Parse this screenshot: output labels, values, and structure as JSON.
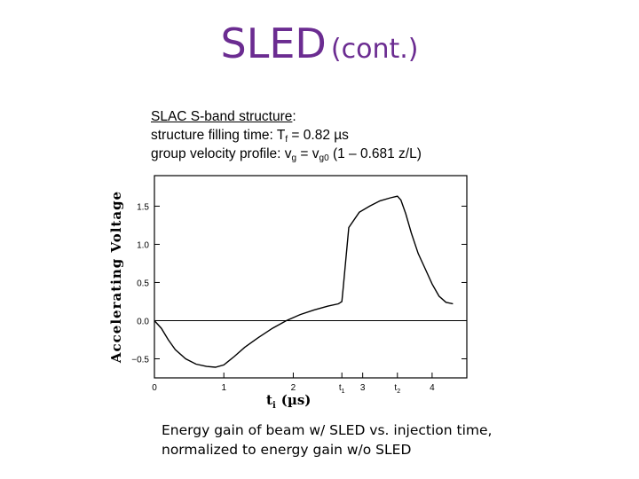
{
  "slide": {
    "title_main": "SLED",
    "title_sub": "(cont.)",
    "info": {
      "line1_link": "SLAC S-band structure",
      "line1_rest": ":",
      "line2_prefix": "structure filling time:   T",
      "line2_sub": "f",
      "line2_suffix": " = 0.82 µs",
      "line3_prefix": "group velocity profile: v",
      "line3_sub1": "g",
      "line3_mid": " = v",
      "line3_sub2": "g0",
      "line3_suffix": " (1 – 0.681 z/L)"
    },
    "caption_line1": "Energy gain of beam w/ SLED vs. injection time,",
    "caption_line2": "normalized to energy gain w/o SLED"
  },
  "chart_data": {
    "type": "line",
    "ylabel": "Accelerating Voltage",
    "xlabel_var": "t",
    "xlabel_sub": "i",
    "xlabel_unit": "(µs)",
    "xlim": [
      0,
      4.5
    ],
    "ylim": [
      -0.75,
      1.9
    ],
    "x_ticks": [
      {
        "v": 0,
        "label": "0"
      },
      {
        "v": 1,
        "label": "1"
      },
      {
        "v": 2,
        "label": "2"
      },
      {
        "v": 2.7,
        "label": "t",
        "sub": "1"
      },
      {
        "v": 3,
        "label": "3"
      },
      {
        "v": 3.5,
        "label": "t",
        "sub": "2"
      },
      {
        "v": 4,
        "label": "4"
      }
    ],
    "y_ticks": [
      {
        "v": -0.5,
        "label": "−0.5"
      },
      {
        "v": 0,
        "label": "0.0"
      },
      {
        "v": 0.5,
        "label": "0.5"
      },
      {
        "v": 1.0,
        "label": "1.0"
      },
      {
        "v": 1.5,
        "label": "1.5"
      }
    ],
    "baseline": 0,
    "series": [
      {
        "color": "#000000",
        "x": [
          0.0,
          0.1,
          0.2,
          0.3,
          0.45,
          0.6,
          0.75,
          0.88,
          1.0,
          1.15,
          1.3,
          1.5,
          1.7,
          1.9,
          2.1,
          2.3,
          2.5,
          2.65,
          2.7,
          2.72,
          2.8,
          2.95,
          3.1,
          3.25,
          3.4,
          3.5,
          3.55,
          3.62,
          3.7,
          3.8,
          3.9,
          4.0,
          4.1,
          4.2,
          4.3
        ],
        "y": [
          0.0,
          -0.1,
          -0.25,
          -0.38,
          -0.5,
          -0.57,
          -0.6,
          -0.61,
          -0.58,
          -0.47,
          -0.35,
          -0.22,
          -0.1,
          0.0,
          0.08,
          0.14,
          0.19,
          0.22,
          0.25,
          0.44,
          1.22,
          1.42,
          1.5,
          1.57,
          1.61,
          1.63,
          1.58,
          1.4,
          1.15,
          0.88,
          0.68,
          0.48,
          0.32,
          0.24,
          0.22
        ]
      }
    ]
  }
}
